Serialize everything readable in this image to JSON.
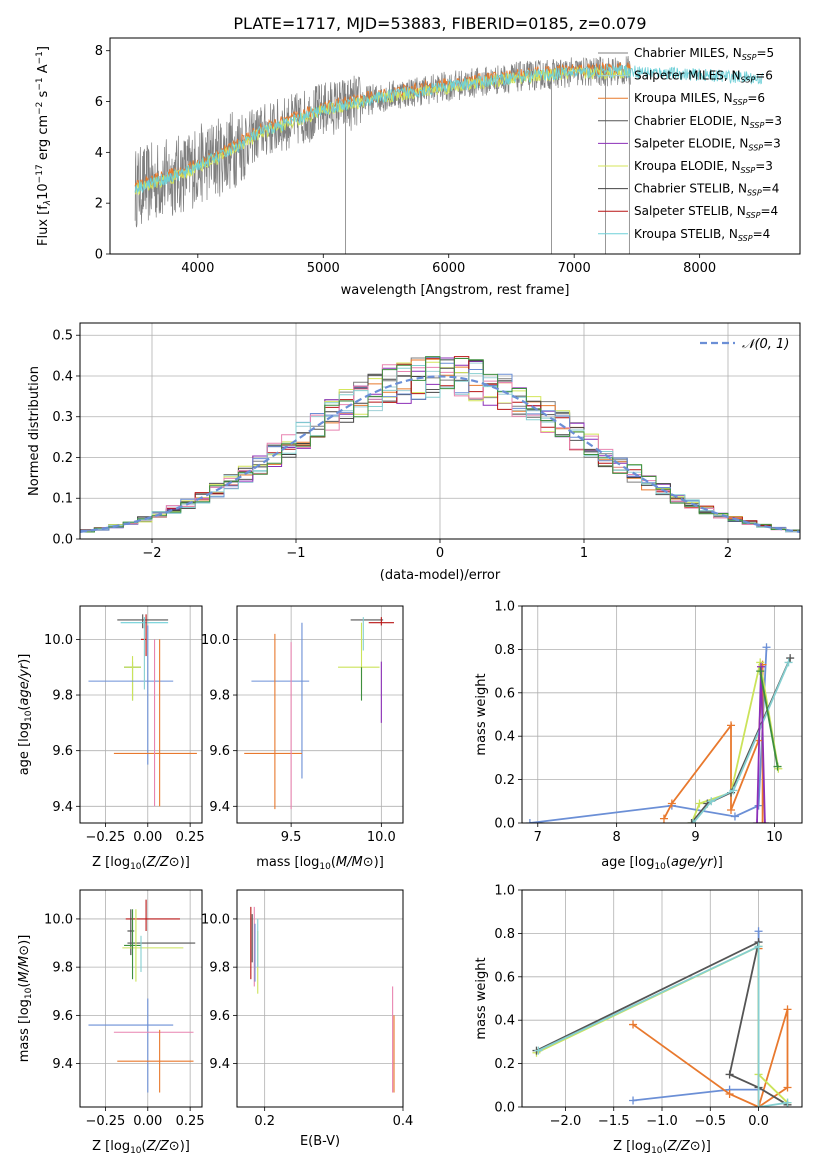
{
  "figure_title": "PLATE=1717, MJD=53883, FIBERID=0185, z=0.079",
  "colors": {
    "Chabrier MILES": "#7f7f7f",
    "Salpeter MILES": "#9fd0d8",
    "Kroupa MILES": "#e87a2c",
    "Chabrier ELODIE": "#555555",
    "Salpeter ELODIE": "#8c2fb8",
    "Kroupa ELODIE": "#d4e65a",
    "Chabrier STELIB": "#444444",
    "Salpeter STELIB": "#b81414",
    "Kroupa STELIB": "#6fd0d8",
    "blue": "#6b8fd6",
    "orange": "#e8792e",
    "pink": "#e884b0",
    "green": "#3e8f3e",
    "lime": "#cbe35a",
    "teal": "#86cfd0",
    "dark": "#555555",
    "red": "#b81414",
    "purple": "#8c2fb8"
  },
  "chart_data": [
    {
      "type": "line",
      "title": "PLATE=1717, MJD=53883, FIBERID=0185, z=0.079",
      "xlabel": "wavelength [Angstrom, rest frame]",
      "ylabel_parts": [
        "Flux [f",
        "λ",
        "10",
        "−17",
        " erg cm",
        "−2",
        " s",
        "−1",
        " A",
        "−1",
        "]"
      ],
      "xlim": [
        3300,
        8800
      ],
      "ylim": [
        0,
        8.5
      ],
      "x_ticks": [
        4000,
        5000,
        6000,
        7000,
        8000
      ],
      "y_ticks": [
        0,
        2,
        4,
        6,
        8
      ],
      "spectrum_range": [
        3500,
        8500
      ],
      "legend_position": "upper-right",
      "legend": [
        {
          "name": "Chabrier MILES",
          "n": "5",
          "color": "#7f7f7f"
        },
        {
          "name": "Salpeter MILES",
          "n": "6",
          "color": "#9fd0d8"
        },
        {
          "name": "Kroupa MILES",
          "n": "6",
          "color": "#e87a2c"
        },
        {
          "name": "Chabrier ELODIE",
          "n": "3",
          "color": "#555555"
        },
        {
          "name": "Salpeter ELODIE",
          "n": "3",
          "color": "#8c2fb8"
        },
        {
          "name": "Kroupa ELODIE",
          "n": "3",
          "color": "#d4e65a"
        },
        {
          "name": "Chabrier STELIB",
          "n": "4",
          "color": "#444444"
        },
        {
          "name": "Salpeter STELIB",
          "n": "4",
          "color": "#b81414"
        },
        {
          "name": "Kroupa STELIB",
          "n": "4",
          "color": "#6fd0d8"
        }
      ],
      "legend_label_sub": "SSP",
      "continuum": {
        "x": [
          3500,
          3700,
          3900,
          4000,
          4200,
          4500,
          4800,
          5000,
          5300,
          5600,
          6000,
          6300,
          6600,
          7000,
          7400,
          7800,
          8200,
          8500
        ],
        "y": [
          2.6,
          2.9,
          3.2,
          3.5,
          3.9,
          4.8,
          5.3,
          5.7,
          6.0,
          6.3,
          6.6,
          6.8,
          7.0,
          7.15,
          7.2,
          7.1,
          7.0,
          6.9
        ]
      }
    },
    {
      "type": "bar",
      "xlabel": "(data-model)/error",
      "ylabel": "Normed distribution",
      "xlim": [
        -2.5,
        2.5
      ],
      "ylim": [
        0,
        0.53
      ],
      "x_ticks": [
        -2,
        -1,
        0,
        1,
        2
      ],
      "x_tick_labels": [
        "−2",
        "−1",
        "0",
        "1",
        "2"
      ],
      "y_ticks": [
        0.0,
        0.1,
        0.2,
        0.3,
        0.4,
        0.5
      ],
      "y_tick_labels": [
        "0.0",
        "0.1",
        "0.2",
        "0.3",
        "0.4",
        "0.5"
      ],
      "bin_width": 0.1,
      "bins_start": -2.5,
      "legend_label": "𝒩(0, 1)",
      "legend_position": "upper-right",
      "gaussian": {
        "mu": 0,
        "sigma": 1
      }
    },
    {
      "type": "scatter",
      "name": "age-vs-Z",
      "xlabel": "Z [log10(Z/Z⊙)]",
      "ylabel": "age  [log10(age/yr)]",
      "xlim": [
        -0.4,
        0.32
      ],
      "ylim": [
        9.34,
        10.12
      ],
      "x_ticks": [
        -0.25,
        0.0,
        0.25
      ],
      "x_tick_labels": [
        "−0.25",
        "0.00",
        "0.25"
      ],
      "y_ticks": [
        9.4,
        9.6,
        9.8,
        10.0
      ],
      "y_tick_labels": [
        "9.4",
        "9.6",
        "9.8",
        "10.0"
      ],
      "points": [
        {
          "x": -0.03,
          "xerr": [
            0.15,
            0.15
          ],
          "y": 10.07,
          "yerr": [
            0.03,
            0.02
          ],
          "color": "#555555"
        },
        {
          "x": -0.02,
          "xerr": [
            0.14,
            0.14
          ],
          "y": 10.06,
          "yerr": [
            0.02,
            0.02
          ],
          "color": "#6fd0d8"
        },
        {
          "x": -0.01,
          "xerr": [
            0.03,
            0.0
          ],
          "y": 10.0,
          "yerr": [
            0.06,
            0.09
          ],
          "color": "#b81414"
        },
        {
          "x": -0.09,
          "xerr": [
            0.05,
            0.05
          ],
          "y": 9.9,
          "yerr": [
            0.12,
            0.02
          ],
          "color": "#3e8f3e"
        },
        {
          "x": -0.09,
          "xerr": [
            0.05,
            0.05
          ],
          "y": 9.9,
          "yerr": [
            0.12,
            0.04
          ],
          "color": "#cbe35a"
        },
        {
          "x": 0.0,
          "xerr": [
            0.35,
            0.15
          ],
          "y": 9.85,
          "yerr": [
            0.0,
            0.0
          ],
          "color": "#6b8fd6"
        },
        {
          "x": 0.0,
          "xerr": [
            0.0,
            0.0
          ],
          "y": 9.85,
          "yerr": [
            0.3,
            0.2
          ],
          "color": "#6b8fd6"
        },
        {
          "x": 0.07,
          "xerr": [
            0.27,
            0.22
          ],
          "y": 9.59,
          "yerr": [
            0.19,
            0.41
          ],
          "color": "#e8792e"
        },
        {
          "x": 0.04,
          "xerr": [
            0.0,
            0.0
          ],
          "y": 9.59,
          "yerr": [
            0.19,
            0.41
          ],
          "color": "#e884b0"
        },
        {
          "x": -0.02,
          "xerr": [
            0.0,
            0.0
          ],
          "y": 9.95,
          "yerr": [
            0.13,
            0.1
          ],
          "color": "#86cfd0"
        }
      ]
    },
    {
      "type": "scatter",
      "name": "age-vs-mass",
      "xlabel": "mass [log10(M/M⊙)]",
      "xlim": [
        9.2,
        10.12
      ],
      "ylim": [
        9.34,
        10.12
      ],
      "x_ticks": [
        9.5,
        10.0
      ],
      "x_tick_labels": [
        "9.5",
        "10.0"
      ],
      "y_ticks": [
        9.4,
        9.6,
        9.8,
        10.0
      ],
      "y_tick_labels": [
        "9.4",
        "9.6",
        "9.8",
        "10.0"
      ],
      "points": [
        {
          "x": 9.91,
          "xerr": [
            0.08,
            0.1
          ],
          "y": 10.07,
          "yerr": [
            0.0,
            0.0
          ],
          "color": "#555555"
        },
        {
          "x": 10.0,
          "xerr": [
            0.07,
            0.07
          ],
          "y": 10.06,
          "yerr": [
            0.01,
            0.02
          ],
          "color": "#b81414"
        },
        {
          "x": 9.9,
          "xerr": [
            0.0,
            0.0
          ],
          "y": 10.03,
          "yerr": [
            0.07,
            0.05
          ],
          "color": "#86cfd0"
        },
        {
          "x": 9.89,
          "xerr": [
            0.13,
            0.1
          ],
          "y": 9.9,
          "yerr": [
            0.08,
            0.16
          ],
          "color": "#cbe35a"
        },
        {
          "x": 9.89,
          "xerr": [
            0.0,
            0.0
          ],
          "y": 9.9,
          "yerr": [
            0.12,
            0.0
          ],
          "color": "#3e8f3e"
        },
        {
          "x": 10.0,
          "xerr": [
            0.0,
            0.0
          ],
          "y": 9.9,
          "yerr": [
            0.2,
            0.02
          ],
          "color": "#8c2fb8"
        },
        {
          "x": 9.46,
          "xerr": [
            0.18,
            0.14
          ],
          "y": 9.85,
          "yerr": [
            0.0,
            0.0
          ],
          "color": "#6b8fd6"
        },
        {
          "x": 9.56,
          "xerr": [
            0.0,
            0.0
          ],
          "y": 9.85,
          "yerr": [
            0.35,
            0.21
          ],
          "color": "#6b8fd6"
        },
        {
          "x": 9.41,
          "xerr": [
            0.17,
            0.15
          ],
          "y": 9.59,
          "yerr": [
            0.2,
            0.43
          ],
          "color": "#e8792e"
        },
        {
          "x": 9.5,
          "xerr": [
            0.0,
            0.0
          ],
          "y": 9.59,
          "yerr": [
            0.2,
            0.4
          ],
          "color": "#e884b0"
        }
      ]
    },
    {
      "type": "line",
      "name": "mass-weight-vs-age",
      "xlabel": "age  [log10(age/yr)]",
      "ylabel": "mass weight",
      "xlim": [
        6.8,
        10.35
      ],
      "ylim": [
        0,
        1.0
      ],
      "x_ticks": [
        7,
        8,
        9,
        10
      ],
      "x_tick_labels": [
        "7",
        "8",
        "9",
        "10"
      ],
      "y_ticks": [
        0.0,
        0.2,
        0.4,
        0.6,
        0.8,
        1.0
      ],
      "y_tick_labels": [
        "0.0",
        "0.2",
        "0.4",
        "0.6",
        "0.8",
        "1.0"
      ],
      "series": [
        {
          "color": "#6b8fd6",
          "x": [
            6.9,
            8.7,
            9.5,
            9.8,
            9.9
          ],
          "y": [
            0.0,
            0.08,
            0.03,
            0.08,
            0.81
          ]
        },
        {
          "color": "#e8792e",
          "x": [
            8.6,
            8.7,
            9.45,
            9.45,
            9.8,
            9.85,
            9.85
          ],
          "y": [
            0.02,
            0.09,
            0.45,
            0.06,
            0.38,
            0.73,
            0.0
          ]
        },
        {
          "color": "#cbe35a",
          "x": [
            8.95,
            9.05,
            9.45,
            9.82,
            10.05
          ],
          "y": [
            0.0,
            0.09,
            0.14,
            0.74,
            0.25
          ]
        },
        {
          "color": "#555555",
          "x": [
            8.95,
            9.15,
            9.45,
            10.2
          ],
          "y": [
            0.0,
            0.09,
            0.14,
            0.76
          ]
        },
        {
          "color": "#86cfd0",
          "x": [
            8.97,
            9.2,
            9.48,
            10.18
          ],
          "y": [
            0.0,
            0.1,
            0.15,
            0.74
          ]
        },
        {
          "color": "#8c2fb8",
          "x": [
            9.78,
            9.83,
            9.88
          ],
          "y": [
            0.0,
            0.72,
            0.0
          ]
        },
        {
          "color": "#3e8f3e",
          "x": [
            9.82,
            10.04
          ],
          "y": [
            0.7,
            0.26
          ]
        }
      ]
    },
    {
      "type": "scatter",
      "name": "mass-vs-Z",
      "xlabel": "Z [log10(Z/Z⊙)]",
      "ylabel": "mass [log10(M/M⊙)]",
      "xlim": [
        -0.4,
        0.32
      ],
      "ylim": [
        9.22,
        10.12
      ],
      "x_ticks": [
        -0.25,
        0.0,
        0.25
      ],
      "x_tick_labels": [
        "−0.25",
        "0.00",
        "0.25"
      ],
      "y_ticks": [
        9.4,
        9.6,
        9.8,
        10.0
      ],
      "y_tick_labels": [
        "9.4",
        "9.6",
        "9.8",
        "10.0"
      ],
      "points": [
        {
          "x": -0.01,
          "xerr": [
            0.12,
            0.2
          ],
          "y": 10.0,
          "yerr": [
            0.05,
            0.08
          ],
          "color": "#b81414"
        },
        {
          "x": -0.1,
          "xerr": [
            0.02,
            0.02
          ],
          "y": 9.95,
          "yerr": [
            0.1,
            0.09
          ],
          "color": "#444444"
        },
        {
          "x": 0.01,
          "xerr": [
            0.13,
            0.27
          ],
          "y": 9.9,
          "yerr": [
            0.0,
            0.0
          ],
          "color": "#555555"
        },
        {
          "x": -0.02,
          "xerr": [
            0.13,
            0.23
          ],
          "y": 9.88,
          "yerr": [
            0.0,
            0.0
          ],
          "color": "#cbe35a"
        },
        {
          "x": -0.09,
          "xerr": [
            0.05,
            0.05
          ],
          "y": 9.89,
          "yerr": [
            0.14,
            0.15
          ],
          "color": "#3e8f3e"
        },
        {
          "x": -0.04,
          "xerr": [
            0.0,
            0.0
          ],
          "y": 9.88,
          "yerr": [
            0.1,
            0.05
          ],
          "color": "#86cfd0"
        },
        {
          "x": -0.07,
          "xerr": [
            0.0,
            0.0
          ],
          "y": 9.92,
          "yerr": [
            0.18,
            0.12
          ],
          "color": "#cbe35a"
        },
        {
          "x": 0.0,
          "xerr": [
            0.35,
            0.15
          ],
          "y": 9.56,
          "yerr": [
            0.28,
            0.11
          ],
          "color": "#6b8fd6"
        },
        {
          "x": 0.05,
          "xerr": [
            0.25,
            0.22
          ],
          "y": 9.53,
          "yerr": [
            0.0,
            0.0
          ],
          "color": "#e884b0"
        },
        {
          "x": 0.07,
          "xerr": [
            0.25,
            0.2
          ],
          "y": 9.41,
          "yerr": [
            0.13,
            0.13
          ],
          "color": "#e8792e"
        }
      ]
    },
    {
      "type": "scatter",
      "name": "mass-vs-EBV",
      "xlabel": "E(B-V)",
      "xlim": [
        0.16,
        0.4
      ],
      "ylim": [
        9.22,
        10.12
      ],
      "x_ticks": [
        0.2,
        0.4
      ],
      "x_tick_labels": [
        "0.2",
        "0.4"
      ],
      "y_ticks": [
        9.4,
        9.6,
        9.8,
        10.0
      ],
      "y_tick_labels": [
        "9.4",
        "9.6",
        "9.8",
        "10.0"
      ],
      "points": [
        {
          "x": 0.18,
          "y": 9.95,
          "yerr": [
            0.2,
            0.1
          ],
          "color": "#b81414"
        },
        {
          "x": 0.182,
          "y": 9.92,
          "yerr": [
            0.1,
            0.1
          ],
          "color": "#555555"
        },
        {
          "x": 0.185,
          "y": 9.9,
          "yerr": [
            0.18,
            0.15
          ],
          "color": "#e884b0"
        },
        {
          "x": 0.186,
          "y": 9.88,
          "yerr": [
            0.14,
            0.1
          ],
          "color": "#6b8fd6"
        },
        {
          "x": 0.19,
          "y": 9.85,
          "yerr": [
            0.16,
            0.1
          ],
          "color": "#cbe35a"
        },
        {
          "x": 0.19,
          "y": 9.9,
          "yerr": [
            0.1,
            0.1
          ],
          "color": "#86cfd0"
        },
        {
          "x": 0.385,
          "y": 9.45,
          "yerr": [
            0.17,
            0.27
          ],
          "color": "#e884b0"
        },
        {
          "x": 0.387,
          "y": 9.4,
          "yerr": [
            0.12,
            0.2
          ],
          "color": "#e8792e"
        }
      ]
    },
    {
      "type": "line",
      "name": "mass-weight-vs-Z",
      "xlabel": "Z [log10(Z/Z⊙)]",
      "ylabel": "mass weight",
      "xlim": [
        -2.45,
        0.45
      ],
      "ylim": [
        0,
        1.0
      ],
      "x_ticks": [
        -2.0,
        -1.5,
        -1.0,
        -0.5,
        0.0
      ],
      "x_tick_labels": [
        "−2.0",
        "−1.5",
        "−1.0",
        "−0.5",
        "0.0"
      ],
      "y_ticks": [
        0.0,
        0.2,
        0.4,
        0.6,
        0.8,
        1.0
      ],
      "y_tick_labels": [
        "0.0",
        "0.2",
        "0.4",
        "0.6",
        "0.8",
        "1.0"
      ],
      "series": [
        {
          "color": "#6b8fd6",
          "x": [
            -1.3,
            -0.3,
            0.0,
            0.0
          ],
          "y": [
            0.03,
            0.08,
            0.08,
            0.81
          ]
        },
        {
          "color": "#e8792e",
          "x": [
            -1.3,
            -0.3,
            0.0,
            0.3,
            0.3,
            0.0,
            0.0
          ],
          "y": [
            0.38,
            0.06,
            0.0,
            0.09,
            0.45,
            0.0,
            0.73
          ]
        },
        {
          "color": "#cbe35a",
          "x": [
            -2.3,
            0.0,
            0.0,
            0.3
          ],
          "y": [
            0.25,
            0.74,
            0.15,
            0.02
          ]
        },
        {
          "color": "#555555",
          "x": [
            -2.3,
            0.0,
            -0.3,
            0.0,
            0.3
          ],
          "y": [
            0.26,
            0.76,
            0.15,
            0.09,
            0.01
          ]
        },
        {
          "color": "#86cfd0",
          "x": [
            -2.28,
            0.0,
            0.0,
            0.3
          ],
          "y": [
            0.26,
            0.74,
            0.0,
            0.02
          ]
        }
      ]
    }
  ]
}
